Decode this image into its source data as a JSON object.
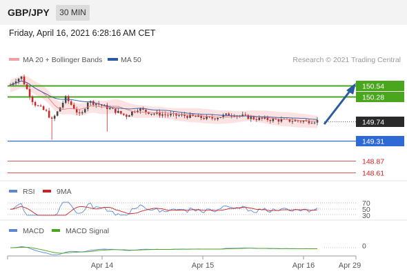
{
  "header": {
    "symbol": "GBP/JPY",
    "timeframe": "30 MIN"
  },
  "datetime": "Friday, April 16, 2021 6:28:16 AM CET",
  "colors": {
    "bollinger": "#f0a0a0",
    "ma50": "#2b5aa0",
    "resistance": "#4aa61c",
    "pivot": "#2d6ad6",
    "support": "#cc2222",
    "arrow": "#2b5aa0",
    "rsi": "#5b86d6",
    "rsi_ma": "#cc2222",
    "macd": "#5b86d6",
    "macd_signal": "#4aa61c",
    "candle_up": "#444444",
    "candle_down": "#c42a2a"
  },
  "chart_data": [
    {
      "type": "candlestick",
      "legend": [
        {
          "name": "MA 20 + Bollinger Bands",
          "color": "#f0a0a0"
        },
        {
          "name": "MA 50",
          "color": "#2b5aa0"
        }
      ],
      "credit": "Research © 2021 Trading Central",
      "ylim": [
        148.45,
        150.9
      ],
      "x_ticks": [
        "Apr 14",
        "Apr 15",
        "Apr 16",
        "Apr 29"
      ],
      "levels": [
        {
          "value": 150.54,
          "label": "150.54",
          "kind": "resistance"
        },
        {
          "value": 150.28,
          "label": "150.28",
          "kind": "resistance"
        },
        {
          "value": 149.74,
          "label": "149.74",
          "kind": "last"
        },
        {
          "value": 149.31,
          "label": "149.31",
          "kind": "pivot"
        },
        {
          "value": 148.87,
          "label": "148.87",
          "kind": "support"
        },
        {
          "value": 148.61,
          "label": "148.61",
          "kind": "support"
        }
      ],
      "arrow": {
        "from": 149.74,
        "to": 150.54
      }
    },
    {
      "type": "line",
      "legend": [
        {
          "name": "RSI",
          "color": "#5b86d6"
        },
        {
          "name": "9MA",
          "color": "#cc2222"
        }
      ],
      "ylim": [
        20,
        80
      ],
      "y_ticks": [
        "70",
        "50",
        "30"
      ]
    },
    {
      "type": "line",
      "legend": [
        {
          "name": "MACD",
          "color": "#5b86d6"
        },
        {
          "name": "MACD Signal",
          "color": "#4aa61c"
        }
      ],
      "y_ticks": [
        "0"
      ]
    }
  ]
}
